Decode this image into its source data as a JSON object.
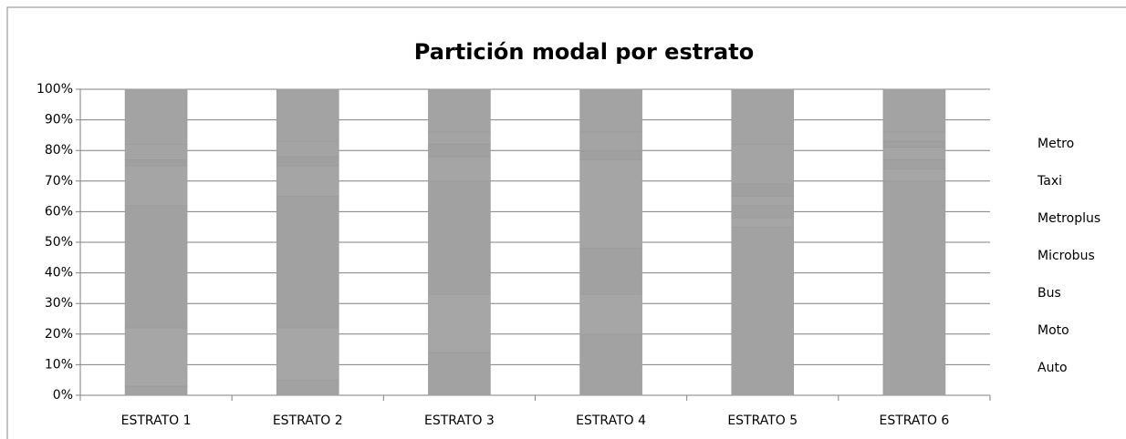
{
  "chart_data": {
    "type": "stacked_bar_100",
    "title": "Partición modal por estrato",
    "categories": [
      "ESTRATO 1",
      "ESTRATO 2",
      "ESTRATO 3",
      "ESTRATO 4",
      "ESTRATO 5",
      "ESTRATO 6"
    ],
    "series": [
      {
        "name": "Auto",
        "color": "#a2a2a2",
        "values": [
          3,
          5,
          14,
          20,
          55,
          70
        ]
      },
      {
        "name": "Moto",
        "color": "#a6a6a6",
        "values": [
          19,
          17,
          19,
          13,
          3,
          4
        ]
      },
      {
        "name": "Bus",
        "color": "#a1a1a1",
        "values": [
          40,
          43,
          37,
          15,
          4,
          3
        ]
      },
      {
        "name": "Microbus",
        "color": "#a5a5a5",
        "values": [
          13,
          10,
          8,
          29,
          3,
          4
        ]
      },
      {
        "name": "Metroplus",
        "color": "#a0a0a0",
        "values": [
          2,
          3,
          4,
          3,
          4,
          2
        ]
      },
      {
        "name": "Taxi",
        "color": "#a4a4a4",
        "values": [
          5,
          5,
          4,
          6,
          13,
          3
        ]
      },
      {
        "name": "Metro",
        "color": "#a3a3a3",
        "values": [
          18,
          17,
          14,
          14,
          18,
          14
        ]
      }
    ],
    "ylim": [
      0,
      100
    ],
    "yticks": [
      {
        "value": 0,
        "label": "0%"
      },
      {
        "value": 10,
        "label": "10%"
      },
      {
        "value": 20,
        "label": "20%"
      },
      {
        "value": 30,
        "label": "30%"
      },
      {
        "value": 40,
        "label": "40%"
      },
      {
        "value": 50,
        "label": "50%"
      },
      {
        "value": 60,
        "label": "60%"
      },
      {
        "value": 70,
        "label": "70%"
      },
      {
        "value": 80,
        "label": "80%"
      },
      {
        "value": 90,
        "label": "90%"
      },
      {
        "value": 100,
        "label": "100%"
      }
    ],
    "grid": true,
    "legend": "right"
  }
}
